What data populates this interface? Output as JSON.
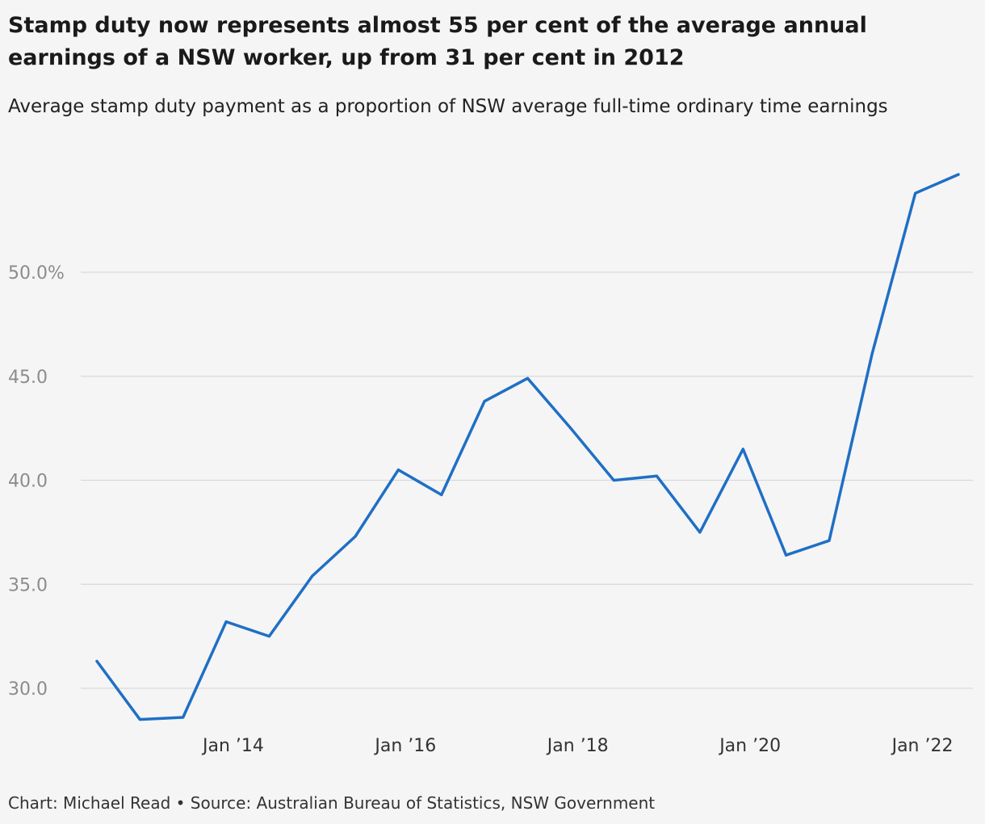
{
  "header": {
    "title": "Stamp duty now represents almost 55 per cent of the average annual earnings of a NSW worker, up from 31 per cent in 2012",
    "subtitle": "Average stamp duty payment as a proportion of NSW average full-time ordinary time earnings"
  },
  "footer": {
    "credit": "Chart: Michael Read • Source: Australian Bureau of Statistics, NSW Government"
  },
  "chart_data": {
    "type": "line",
    "title": "",
    "xlabel": "",
    "ylabel": "",
    "grid": true,
    "legend": "none",
    "line_color": "#1f6fc5",
    "x": [
      "2012-06",
      "2012-12",
      "2013-06",
      "2013-12",
      "2014-06",
      "2014-12",
      "2015-06",
      "2015-12",
      "2016-06",
      "2016-12",
      "2017-06",
      "2017-12",
      "2018-06",
      "2018-12",
      "2019-06",
      "2019-12",
      "2020-06",
      "2020-12",
      "2021-06",
      "2021-12",
      "2022-06"
    ],
    "series": [
      {
        "values": [
          31.3,
          28.5,
          28.6,
          33.2,
          32.5,
          35.4,
          37.3,
          40.5,
          39.3,
          43.8,
          44.9,
          42.5,
          40.0,
          40.2,
          37.5,
          41.5,
          36.4,
          37.1,
          46.1,
          53.8,
          54.7
        ]
      }
    ],
    "ylim": [
      28,
      57
    ],
    "yticks": [
      {
        "value": 30,
        "label": "30.0"
      },
      {
        "value": 35,
        "label": "35.0"
      },
      {
        "value": 40,
        "label": "40.0"
      },
      {
        "value": 45,
        "label": "45.0"
      },
      {
        "value": 50,
        "label": "50.0%"
      }
    ],
    "xticks": [
      {
        "value": "2014-01",
        "label": "Jan ’14"
      },
      {
        "value": "2016-01",
        "label": "Jan ’16"
      },
      {
        "value": "2018-01",
        "label": "Jan ’18"
      },
      {
        "value": "2020-01",
        "label": "Jan ’20"
      },
      {
        "value": "2022-01",
        "label": "Jan ’22"
      }
    ]
  }
}
